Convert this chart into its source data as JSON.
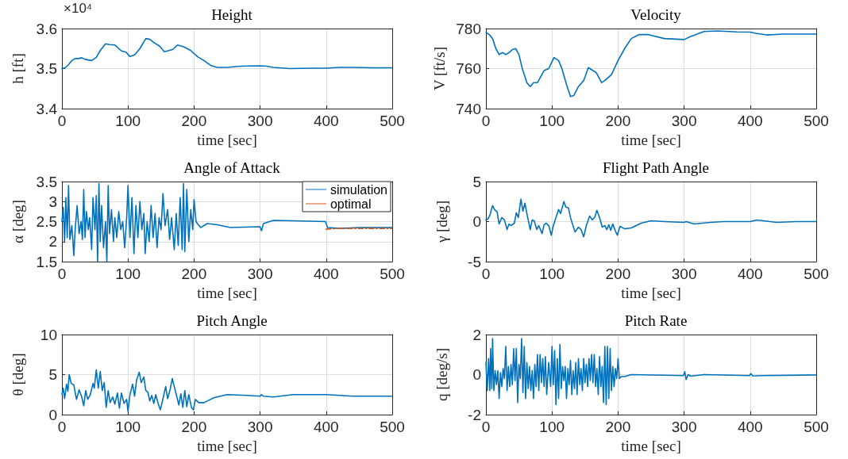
{
  "chart_data": [
    {
      "type": "line",
      "title": "Height",
      "xlabel": "time [sec]",
      "ylabel": "h [ft]",
      "annotations": [
        "×10⁴"
      ],
      "xlim": [
        0,
        500
      ],
      "xticks": [
        0,
        100,
        200,
        300,
        400,
        500
      ],
      "ylim": [
        3.4,
        3.6
      ],
      "yticks": [
        3.4,
        3.5,
        3.6
      ],
      "grid": true,
      "legend": false,
      "marker": "none",
      "line_style": "solid",
      "series": [
        {
          "color": "#0072bd",
          "x": [
            0,
            5,
            10,
            15,
            20,
            25,
            30,
            35,
            45,
            52,
            58,
            66,
            72,
            80,
            90,
            97,
            103,
            110,
            118,
            127,
            133,
            140,
            148,
            155,
            162,
            168,
            175,
            185,
            195,
            205,
            215,
            225,
            235,
            250,
            270,
            300,
            310,
            320,
            345,
            380,
            400,
            420,
            440,
            470,
            500
          ],
          "values": [
            3.5,
            3.502,
            3.51,
            3.52,
            3.525,
            3.525,
            3.527,
            3.523,
            3.52,
            3.528,
            3.545,
            3.562,
            3.56,
            3.559,
            3.544,
            3.541,
            3.53,
            3.534,
            3.55,
            3.575,
            3.573,
            3.564,
            3.556,
            3.542,
            3.545,
            3.548,
            3.559,
            3.554,
            3.545,
            3.53,
            3.52,
            3.508,
            3.503,
            3.503,
            3.506,
            3.507,
            3.506,
            3.503,
            3.5,
            3.501,
            3.501,
            3.503,
            3.503,
            3.502,
            3.502
          ]
        }
      ]
    },
    {
      "type": "line",
      "title": "Velocity",
      "xlabel": "time [sec]",
      "ylabel": "V [ft/s]",
      "xlim": [
        0,
        500
      ],
      "xticks": [
        0,
        100,
        200,
        300,
        400,
        500
      ],
      "ylim": [
        740,
        780
      ],
      "yticks": [
        740,
        760,
        780
      ],
      "grid": true,
      "legend": false,
      "marker": "none",
      "line_style": "solid",
      "series": [
        {
          "color": "#0072bd",
          "x": [
            0,
            5,
            10,
            15,
            20,
            25,
            30,
            35,
            40,
            45,
            50,
            55,
            62,
            67,
            72,
            78,
            88,
            95,
            103,
            110,
            115,
            122,
            128,
            133,
            140,
            148,
            155,
            162,
            167,
            175,
            180,
            190,
            200,
            210,
            220,
            232,
            245,
            270,
            300,
            310,
            330,
            350,
            380,
            400,
            410,
            425,
            450,
            500
          ],
          "values": [
            778,
            777,
            775,
            770,
            767,
            768,
            767,
            768,
            769.5,
            770,
            767,
            760,
            753,
            751,
            753,
            753,
            759,
            760,
            765.5,
            764,
            760,
            752,
            746,
            746.5,
            751,
            754,
            760.5,
            759,
            758,
            753,
            754,
            757,
            764,
            770,
            775,
            777,
            777,
            775,
            774.5,
            776,
            778.5,
            778.8,
            778.3,
            778.2,
            777.5,
            776.8,
            777.2,
            777.2
          ]
        }
      ]
    },
    {
      "type": "line",
      "title": "Angle of Attack",
      "xlabel": "time [sec]",
      "ylabel": "α [deg]",
      "xlim": [
        0,
        500
      ],
      "xticks": [
        0,
        100,
        200,
        300,
        400,
        500
      ],
      "ylim": [
        1.5,
        3.5
      ],
      "yticks": [
        1.5,
        2,
        2.5,
        3,
        3.5
      ],
      "grid": true,
      "legend": "top right",
      "marker": "none",
      "series": [
        {
          "name": "simulation",
          "color": "#0072bd",
          "line_style": "solid",
          "x": [
            0,
            2,
            4,
            6,
            8,
            10,
            12,
            15,
            18,
            20,
            23,
            26,
            29,
            31,
            33,
            35,
            37,
            40,
            42,
            45,
            47,
            50,
            52,
            54,
            56,
            58,
            60,
            63,
            66,
            68,
            70,
            72,
            75,
            78,
            80,
            83,
            86,
            89,
            92,
            95,
            98,
            100,
            103,
            106,
            109,
            112,
            115,
            118,
            121,
            124,
            126,
            129,
            132,
            135,
            138,
            141,
            144,
            147,
            150,
            153,
            156,
            160,
            163,
            166,
            170,
            173,
            176,
            179,
            182,
            184,
            186,
            189,
            192,
            195,
            198,
            200,
            203,
            205,
            210,
            220,
            235,
            255,
            300,
            302,
            305,
            320,
            350,
            399,
            402,
            420,
            450,
            500
          ],
          "values": [
            2.5,
            2.85,
            2.0,
            3.1,
            2.1,
            3.4,
            2.05,
            2.4,
            1.65,
            2.3,
            2.9,
            2.2,
            2.5,
            2.05,
            3.3,
            2.1,
            2.75,
            2.3,
            2.6,
            1.8,
            3.1,
            2.3,
            3.15,
            1.5,
            3.45,
            2.0,
            2.9,
            1.85,
            2.5,
            1.5,
            3.4,
            2.2,
            2.8,
            2.0,
            2.6,
            2.1,
            2.75,
            2.3,
            2.5,
            1.85,
            2.6,
            3.4,
            2.1,
            3.1,
            1.7,
            2.9,
            2.1,
            3.0,
            2.3,
            2.7,
            1.7,
            2.5,
            2.0,
            2.9,
            2.1,
            2.7,
            1.85,
            2.6,
            2.3,
            3.2,
            2.4,
            2.8,
            2.05,
            2.6,
            1.8,
            2.7,
            1.9,
            3.1,
            1.8,
            3.45,
            1.75,
            3.3,
            2.0,
            2.8,
            2.3,
            3.05,
            2.5,
            2.45,
            2.35,
            2.45,
            2.42,
            2.35,
            2.37,
            2.27,
            2.45,
            2.53,
            2.52,
            2.5,
            2.35,
            2.33,
            2.35,
            2.35
          ]
        },
        {
          "name": "optimal",
          "color": "#d95319",
          "line_style": "dashed",
          "x": [
            400,
            420,
            500
          ],
          "values": [
            2.31,
            2.33,
            2.33
          ]
        }
      ]
    },
    {
      "type": "line",
      "title": "Flight Path Angle",
      "xlabel": "time [sec]",
      "ylabel": "γ [deg]",
      "xlim": [
        0,
        500
      ],
      "xticks": [
        0,
        100,
        200,
        300,
        400,
        500
      ],
      "ylim": [
        -5,
        5
      ],
      "yticks": [
        -5,
        0,
        5
      ],
      "grid": true,
      "legend": false,
      "marker": "none",
      "line_style": "solid",
      "series": [
        {
          "color": "#0072bd",
          "x": [
            0,
            3,
            6,
            10,
            13,
            17,
            20,
            24,
            28,
            32,
            35,
            38,
            43,
            46,
            49,
            53,
            56,
            59,
            62,
            67,
            70,
            73,
            77,
            80,
            85,
            88,
            91,
            95,
            99,
            102,
            106,
            110,
            113,
            118,
            121,
            125,
            128,
            131,
            135,
            140,
            144,
            148,
            152,
            157,
            161,
            165,
            168,
            172,
            176,
            180,
            183,
            186,
            189,
            192,
            196,
            199,
            203,
            210,
            220,
            235,
            250,
            270,
            300,
            303,
            315,
            340,
            360,
            400,
            410,
            420,
            440,
            470,
            500
          ],
          "values": [
            0.2,
            0.3,
            0.8,
            2.0,
            1.5,
            1.2,
            -0.3,
            0.5,
            0.2,
            -1.0,
            -0.3,
            -0.5,
            -0.2,
            1.1,
            0.5,
            2.8,
            1.3,
            2.3,
            1.0,
            -1.0,
            0.2,
            0.1,
            -1.0,
            -0.5,
            -1.5,
            -0.4,
            -0.2,
            -0.5,
            -1.7,
            -0.5,
            0.5,
            1.5,
            1.0,
            2.5,
            1.8,
            1.7,
            0.5,
            -0.3,
            -1.3,
            -0.7,
            -1.0,
            -1.9,
            -0.5,
            0.7,
            0.2,
            0.6,
            1.4,
            0.5,
            -0.7,
            -0.5,
            -1.0,
            -0.4,
            -1.1,
            -0.3,
            -1.2,
            -1.7,
            -0.6,
            -0.9,
            -0.8,
            -0.2,
            0.1,
            0.0,
            -0.1,
            0.0,
            -0.3,
            -0.1,
            0.0,
            0.0,
            0.2,
            0.1,
            -0.1,
            0.0,
            0.0
          ]
        }
      ]
    },
    {
      "type": "line",
      "title": "Pitch Angle",
      "xlabel": "time [sec]",
      "ylabel": "θ [deg]",
      "xlim": [
        0,
        500
      ],
      "xticks": [
        0,
        100,
        200,
        300,
        400,
        500
      ],
      "ylim": [
        0,
        10
      ],
      "yticks": [
        0,
        5,
        10
      ],
      "grid": true,
      "legend": false,
      "marker": "none",
      "line_style": "solid",
      "series": [
        {
          "color": "#0072bd",
          "x": [
            0,
            2,
            4,
            7,
            9,
            11,
            14,
            18,
            22,
            26,
            30,
            33,
            36,
            39,
            43,
            47,
            49,
            52,
            55,
            58,
            61,
            64,
            67,
            70,
            73,
            77,
            80,
            84,
            87,
            90,
            94,
            98,
            100,
            103,
            107,
            110,
            113,
            117,
            120,
            124,
            127,
            130,
            133,
            136,
            139,
            142,
            146,
            149,
            153,
            157,
            160,
            164,
            167,
            170,
            174,
            177,
            180,
            183,
            186,
            189,
            192,
            196,
            199,
            202,
            207,
            215,
            230,
            250,
            280,
            300,
            302,
            305,
            320,
            350,
            400,
            420,
            440,
            500
          ],
          "values": [
            2.5,
            3.3,
            2.0,
            3.8,
            2.9,
            5.0,
            3.9,
            3.7,
            1.9,
            3.1,
            2.2,
            1.1,
            3.0,
            1.9,
            2.5,
            3.9,
            3.3,
            5.6,
            3.3,
            5.4,
            3.0,
            4.0,
            0.9,
            3.0,
            1.5,
            2.2,
            1.3,
            2.7,
            0.8,
            2.7,
            1.4,
            1.9,
            0.4,
            2.5,
            3.8,
            2.3,
            4.3,
            5.3,
            4.0,
            4.7,
            3.0,
            2.8,
            1.7,
            2.4,
            1.4,
            2.5,
            1.3,
            0.6,
            2.0,
            3.5,
            2.0,
            3.2,
            4.5,
            3.5,
            2.2,
            1.2,
            2.6,
            0.9,
            3.0,
            1.0,
            2.5,
            0.9,
            0.6,
            1.9,
            1.5,
            1.5,
            2.1,
            2.5,
            2.4,
            2.3,
            2.5,
            2.3,
            2.2,
            2.5,
            2.5,
            2.4,
            2.3,
            2.3
          ]
        }
      ]
    },
    {
      "type": "line",
      "title": "Pitch Rate",
      "xlabel": "time [sec]",
      "ylabel": "q [deg/s]",
      "xlim": [
        0,
        500
      ],
      "xticks": [
        0,
        100,
        200,
        300,
        400,
        500
      ],
      "ylim": [
        -2,
        2
      ],
      "yticks": [
        -2,
        0,
        2
      ],
      "grid": true,
      "legend": false,
      "marker": "none",
      "line_style": "solid",
      "series": [
        {
          "color": "#0072bd",
          "x": [
            0,
            2,
            4,
            6,
            7,
            9,
            10,
            12,
            14,
            16,
            18,
            20,
            22,
            24,
            26,
            28,
            30,
            32,
            34,
            36,
            38,
            40,
            42,
            44,
            46,
            48,
            50,
            52,
            54,
            56,
            58,
            60,
            62,
            64,
            66,
            68,
            70,
            72,
            74,
            76,
            78,
            80,
            82,
            84,
            86,
            88,
            90,
            92,
            95,
            98,
            100,
            102,
            104,
            106,
            108,
            110,
            112,
            114,
            116,
            118,
            120,
            122,
            124,
            126,
            128,
            130,
            132,
            134,
            136,
            138,
            140,
            142,
            144,
            146,
            148,
            150,
            152,
            154,
            156,
            158,
            160,
            162,
            164,
            166,
            168,
            170,
            172,
            174,
            176,
            178,
            180,
            182,
            184,
            186,
            188,
            190,
            192,
            194,
            196,
            198,
            200,
            202,
            205,
            210,
            220,
            250,
            299,
            301,
            303,
            306,
            310,
            330,
            399,
            401,
            404,
            420,
            500
          ],
          "values": [
            0.6,
            -0.8,
            0.8,
            -0.8,
            1.3,
            -0.7,
            1.8,
            -0.8,
            0.2,
            -0.5,
            0.2,
            -1.2,
            0.1,
            -0.6,
            0.3,
            -0.2,
            1.4,
            -0.8,
            0.4,
            -0.6,
            0.5,
            -0.5,
            1.3,
            -0.3,
            1.3,
            -1.4,
            0.5,
            -0.2,
            1.8,
            -0.9,
            1.4,
            -1.2,
            0.6,
            -0.7,
            0.4,
            -0.8,
            0.2,
            -1.2,
            0.5,
            -0.6,
            1.0,
            -0.8,
            1.0,
            -0.4,
            0.8,
            -0.6,
            0.9,
            -1.0,
            0.6,
            -0.6,
            1.4,
            -0.5,
            1.2,
            -1.5,
            0.8,
            -1.2,
            1.5,
            -0.7,
            0.4,
            -0.3,
            0.4,
            -1.2,
            0.3,
            -0.5,
            0.7,
            -1.0,
            0.2,
            -0.7,
            0.6,
            -1.0,
            0.8,
            -0.5,
            0.3,
            -0.8,
            0.8,
            -0.4,
            0.5,
            -0.6,
            0.8,
            -0.3,
            1.0,
            -0.4,
            1.0,
            -0.6,
            0.3,
            -1.0,
            0.9,
            -0.6,
            0.4,
            -1.4,
            1.4,
            -1.5,
            1.4,
            -1.2,
            1.3,
            -0.8,
            0.4,
            -0.6,
            0.3,
            -0.2,
            0.8,
            -0.2,
            -0.1,
            -0.1,
            0.0,
            -0.02,
            -0.05,
            0.15,
            -0.25,
            0.0,
            -0.08,
            0.0,
            -0.05,
            0.05,
            -0.07,
            -0.05,
            -0.02
          ]
        }
      ]
    }
  ]
}
